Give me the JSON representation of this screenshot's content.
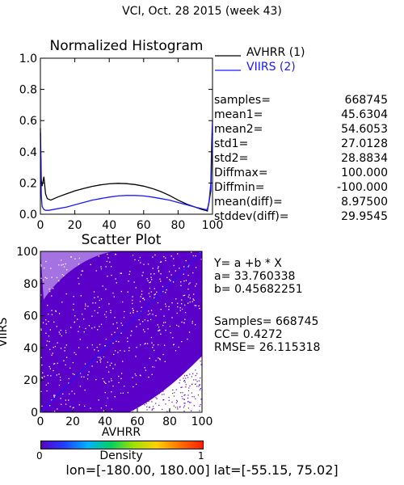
{
  "header": {
    "title": "VCI,  Oct. 28 2015 (week 43)"
  },
  "chart_data": [
    {
      "type": "line",
      "title": "Normalized Histogram",
      "xlim": [
        0,
        100
      ],
      "ylim": [
        0,
        1
      ],
      "x_ticks": [
        "0",
        "20",
        "40",
        "60",
        "80",
        "100"
      ],
      "y_ticks": [
        "0.0",
        "0.2",
        "0.4",
        "0.6",
        "0.8",
        "1.0"
      ],
      "legend_position": "top-right",
      "legend": [
        {
          "label": "AVHRR (1)",
          "color": "#000000"
        },
        {
          "label": "VIIRS (2)",
          "color": "#1a1aff"
        }
      ],
      "series": [
        {
          "name": "AVHRR (1)",
          "color": "#000000",
          "x": [
            0,
            0.5,
            1,
            2,
            3,
            4,
            6,
            10,
            15,
            20,
            25,
            30,
            35,
            40,
            45,
            50,
            55,
            60,
            65,
            70,
            75,
            80,
            85,
            90,
            94,
            96,
            97,
            98,
            99,
            99.5,
            100
          ],
          "y": [
            0.55,
            0.22,
            0.18,
            0.24,
            0.13,
            0.1,
            0.09,
            0.11,
            0.13,
            0.15,
            0.165,
            0.178,
            0.188,
            0.195,
            0.198,
            0.196,
            0.19,
            0.18,
            0.165,
            0.145,
            0.12,
            0.09,
            0.065,
            0.045,
            0.03,
            0.025,
            0.02,
            0.08,
            0.15,
            0.35,
            0.52
          ]
        },
        {
          "name": "VIIRS (2)",
          "color": "#1a1aff",
          "x": [
            0,
            0.5,
            1,
            2,
            3,
            5,
            10,
            15,
            20,
            25,
            30,
            35,
            40,
            45,
            50,
            55,
            60,
            65,
            70,
            75,
            80,
            85,
            90,
            94,
            96,
            97,
            98,
            99,
            99.5,
            100
          ],
          "y": [
            0.52,
            0.12,
            0.05,
            0.03,
            0.025,
            0.025,
            0.035,
            0.045,
            0.06,
            0.075,
            0.09,
            0.1,
            0.11,
            0.117,
            0.12,
            0.12,
            0.117,
            0.11,
            0.1,
            0.09,
            0.075,
            0.06,
            0.045,
            0.035,
            0.03,
            0.03,
            0.08,
            0.2,
            0.45,
            0.6
          ]
        }
      ]
    },
    {
      "type": "scatter",
      "title": "Scatter Plot",
      "xlabel": "AVHRR",
      "ylabel": "VIIRS",
      "xlim": [
        0,
        100
      ],
      "ylim": [
        0,
        100
      ],
      "x_ticks": [
        "0",
        "20",
        "40",
        "60",
        "80",
        "100"
      ],
      "y_ticks": [
        "0",
        "20",
        "40",
        "60",
        "80",
        "100"
      ],
      "fit_line": {
        "a": 33.760338,
        "b": 0.45682251,
        "color": "#1a1aff"
      },
      "point_color": "#5a00c8"
    }
  ],
  "stats": [
    {
      "key": "samples=",
      "value": "668745"
    },
    {
      "key": "mean1=",
      "value": "45.6304"
    },
    {
      "key": "mean2=",
      "value": "54.6053"
    },
    {
      "key": "std1=",
      "value": "27.0128"
    },
    {
      "key": "std2=",
      "value": "28.8834"
    },
    {
      "key": "Diffmax=",
      "value": "100.000"
    },
    {
      "key": "Diffmin=",
      "value": "-100.000"
    },
    {
      "key": "mean(diff)=",
      "value": "8.97500"
    },
    {
      "key": "stddev(diff)=",
      "value": "29.9545"
    }
  ],
  "regression": {
    "equation": "Y= a +b * X",
    "a": "a= 33.760338",
    "b": "b= 0.45682251",
    "samples": "Samples= 668745",
    "cc": "CC=  0.4272",
    "rmse": "RMSE= 26.115318"
  },
  "colorbar": {
    "label": "Density",
    "min_label": "0",
    "max_label": "1",
    "colors": [
      "#5a00c8",
      "#2040ff",
      "#00b0ff",
      "#00d060",
      "#a0e000",
      "#ffd000",
      "#ff7000",
      "#ff2000"
    ]
  },
  "footer": {
    "text": "lon=[-180.00, 180.00] lat=[-55.15, 75.02]"
  }
}
